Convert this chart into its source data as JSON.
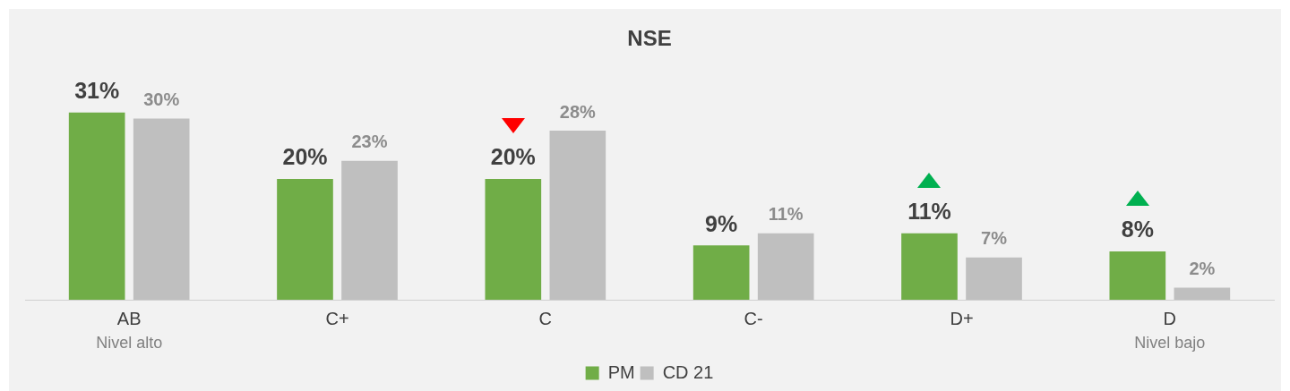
{
  "chart_data": {
    "type": "bar",
    "title": "NSE",
    "categories": [
      "AB",
      "C+",
      "C",
      "C-",
      "D+",
      "D"
    ],
    "series": [
      {
        "name": "PM",
        "color": "#70ad47",
        "values": [
          31,
          20,
          20,
          9,
          11,
          8
        ],
        "value_labels": [
          "31%",
          "20%",
          "20%",
          "9%",
          "11%",
          "8%"
        ]
      },
      {
        "name": "CD 21",
        "color": "#bfbfbf",
        "values": [
          30,
          23,
          28,
          11,
          7,
          2
        ],
        "value_labels": [
          "30%",
          "23%",
          "28%",
          "11%",
          "7%",
          "2%"
        ]
      }
    ],
    "annotations": [
      "Nivel alto",
      "Nivel bajo"
    ],
    "legend": "bottom"
  }
}
